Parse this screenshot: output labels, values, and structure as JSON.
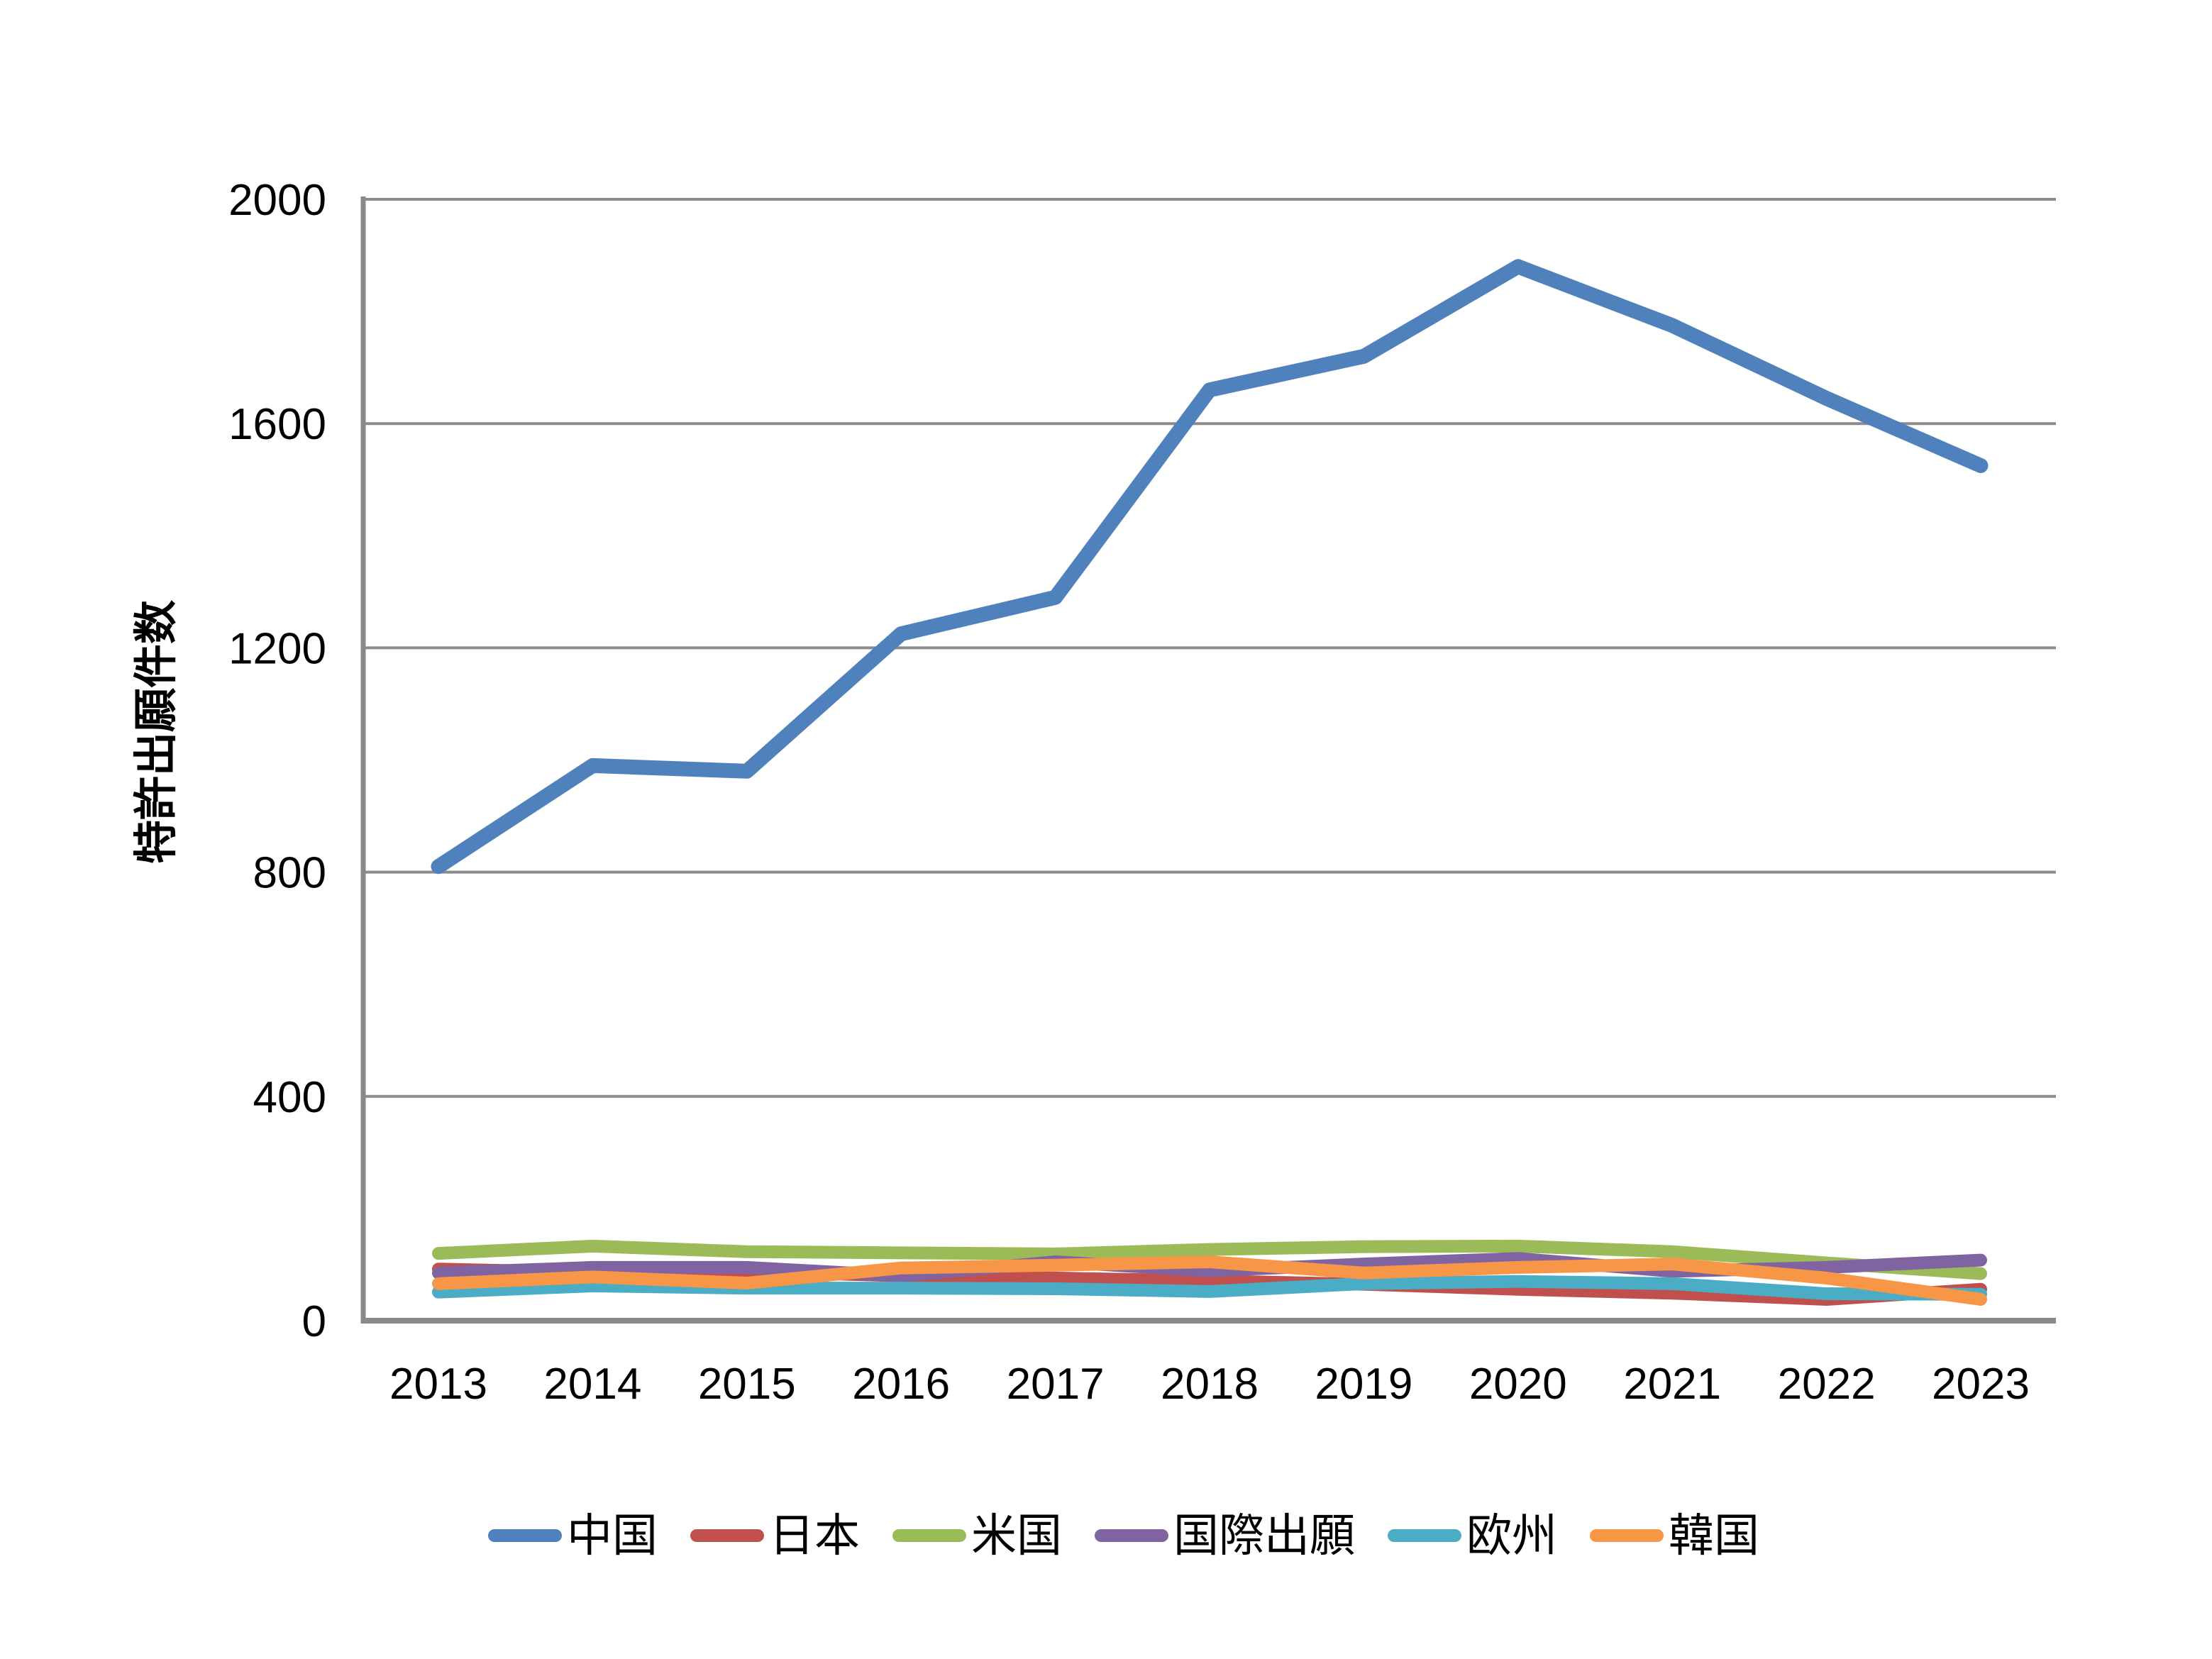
{
  "chart_data": {
    "type": "line",
    "title": "",
    "xlabel": "",
    "ylabel": "特許出願件数",
    "categories": [
      "2013",
      "2014",
      "2015",
      "2016",
      "2017",
      "2018",
      "2019",
      "2020",
      "2021",
      "2022",
      "2023"
    ],
    "series": [
      {
        "name": "中国",
        "color": "#4F81BD",
        "values": [
          810,
          990,
          980,
          1225,
          1290,
          1660,
          1720,
          1880,
          1775,
          1645,
          1525
        ]
      },
      {
        "name": "日本",
        "color": "#C0504D",
        "values": [
          92,
          86,
          88,
          80,
          76,
          71,
          65,
          56,
          49,
          38,
          56
        ]
      },
      {
        "name": "米国",
        "color": "#9BBB59",
        "values": [
          120,
          133,
          123,
          121,
          119,
          127,
          132,
          133,
          123,
          103,
          84
        ]
      },
      {
        "name": "国際出願",
        "color": "#8064A2",
        "values": [
          85,
          95,
          95,
          80,
          105,
          89,
          101,
          111,
          88,
          95,
          108
        ]
      },
      {
        "name": "欧州",
        "color": "#4BACC6",
        "values": [
          51,
          62,
          58,
          58,
          57,
          52,
          66,
          70,
          66,
          48,
          47
        ]
      },
      {
        "name": "韓国",
        "color": "#F79646",
        "values": [
          66,
          78,
          67,
          94,
          99,
          105,
          85,
          95,
          101,
          76,
          38
        ]
      }
    ],
    "ylim": [
      0,
      2000
    ],
    "yticks": [
      0,
      400,
      800,
      1200,
      1600,
      2000
    ],
    "grid": true,
    "legend_position": "bottom"
  },
  "colors": {
    "background": "#FFFFFF",
    "gridline": "#8C8C8C",
    "axis": "#898989",
    "text": "#000000"
  }
}
